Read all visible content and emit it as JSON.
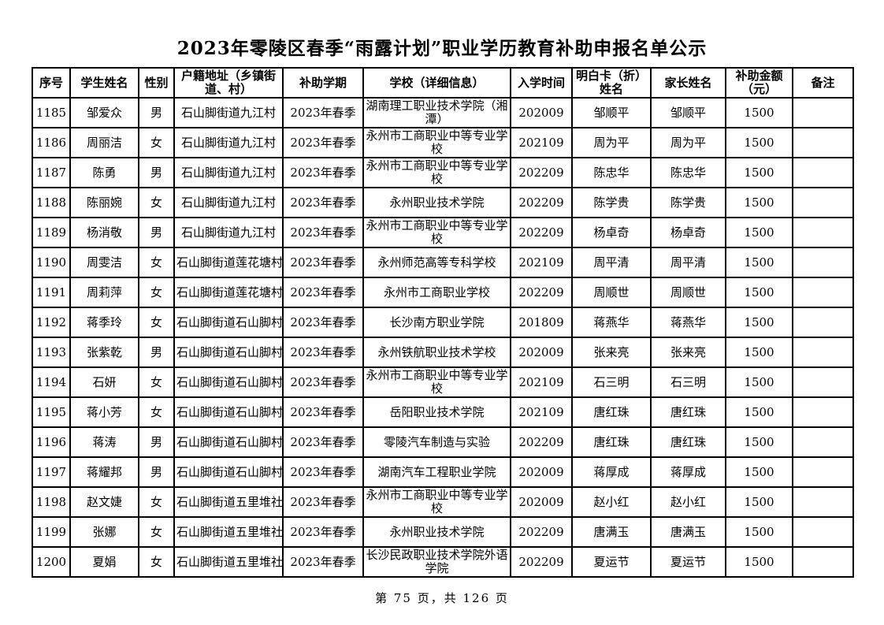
{
  "title": "2023年零陵区春季“雨露计划”职业学历教育补助申报名单公示",
  "table": {
    "headers": [
      "序号",
      "学生姓名",
      "性别",
      "户籍地址（乡镇街道、村）",
      "补助学期",
      "学校（详细信息）",
      "入学时间",
      "明白卡（折）姓名",
      "家长姓名",
      "补助金额（元）",
      "备注"
    ],
    "rows": [
      [
        "1185",
        "邹爱众",
        "男",
        "石山脚街道九江村",
        "2023年春季",
        "湖南理工职业技术学院（湘潭）",
        "202009",
        "邹顺平",
        "邹顺平",
        "1500",
        ""
      ],
      [
        "1186",
        "周丽洁",
        "女",
        "石山脚街道九江村",
        "2023年春季",
        "永州市工商职业中等专业学校",
        "202109",
        "周为平",
        "周为平",
        "1500",
        ""
      ],
      [
        "1187",
        "陈勇",
        "男",
        "石山脚街道九江村",
        "2023年春季",
        "永州市工商职业中等专业学校",
        "202209",
        "陈忠华",
        "陈忠华",
        "1500",
        ""
      ],
      [
        "1188",
        "陈丽婉",
        "女",
        "石山脚街道九江村",
        "2023年春季",
        "永州职业技术学院",
        "202209",
        "陈学贵",
        "陈学贵",
        "1500",
        ""
      ],
      [
        "1189",
        "杨消敬",
        "男",
        "石山脚街道九江村",
        "2023年春季",
        "永州市工商职业中等专业学校",
        "202209",
        "杨卓奇",
        "杨卓奇",
        "1500",
        ""
      ],
      [
        "1190",
        "周雯洁",
        "女",
        "石山脚街道莲花塘村",
        "2023年春季",
        "永州师范高等专科学校",
        "202109",
        "周平清",
        "周平清",
        "1500",
        ""
      ],
      [
        "1191",
        "周莉萍",
        "女",
        "石山脚街道莲花塘村",
        "2023年春季",
        "永州市工商职业学校",
        "202209",
        "周顺世",
        "周顺世",
        "1500",
        ""
      ],
      [
        "1192",
        "蒋季玲",
        "女",
        "石山脚街道石山脚村",
        "2023年春季",
        "长沙南方职业学院",
        "201809",
        "蒋燕华",
        "蒋燕华",
        "1500",
        ""
      ],
      [
        "1193",
        "张紫乾",
        "男",
        "石山脚街道石山脚村",
        "2023年春季",
        "永州铁航职业技术学校",
        "202009",
        "张来亮",
        "张来亮",
        "1500",
        ""
      ],
      [
        "1194",
        "石妍",
        "女",
        "石山脚街道石山脚村",
        "2023年春季",
        "永州市工商职业中等专业学校",
        "202109",
        "石三明",
        "石三明",
        "1500",
        ""
      ],
      [
        "1195",
        "蒋小芳",
        "女",
        "石山脚街道石山脚村",
        "2023年春季",
        "岳阳职业技术学院",
        "202109",
        "唐红珠",
        "唐红珠",
        "1500",
        ""
      ],
      [
        "1196",
        "蒋涛",
        "男",
        "石山脚街道石山脚村",
        "2023年春季",
        "零陵汽车制造与实验",
        "202209",
        "唐红珠",
        "唐红珠",
        "1500",
        ""
      ],
      [
        "1197",
        "蒋耀邦",
        "男",
        "石山脚街道石山脚村",
        "2023年春季",
        "湖南汽车工程职业学院",
        "202009",
        "蒋厚成",
        "蒋厚成",
        "1500",
        ""
      ],
      [
        "1198",
        "赵文婕",
        "女",
        "石山脚街道五里堆社区",
        "2023年春季",
        "永州市工商职业中等专业学校",
        "202009",
        "赵小红",
        "赵小红",
        "1500",
        ""
      ],
      [
        "1199",
        "张娜",
        "女",
        "石山脚街道五里堆社区",
        "2023年春季",
        "永州职业技术学院",
        "202209",
        "唐满玉",
        "唐满玉",
        "1500",
        ""
      ],
      [
        "1200",
        "夏娟",
        "女",
        "石山脚街道五里堆社区",
        "2023年春季",
        "长沙民政职业技术学院外语学院",
        "202209",
        "夏运节",
        "夏运节",
        "1500",
        ""
      ]
    ]
  },
  "footer": {
    "page_info": "第 75 页，共 126 页"
  },
  "colors": {
    "text": "#000000",
    "background": "#ffffff",
    "border": "#000000"
  }
}
